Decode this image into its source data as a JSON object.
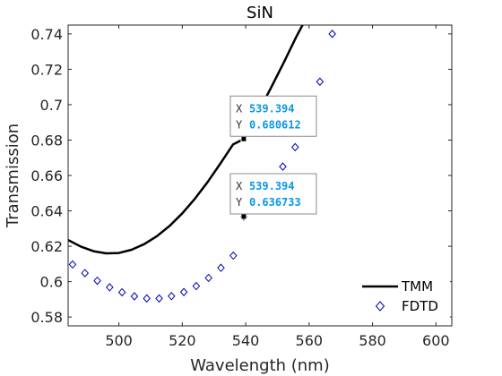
{
  "chart_data": {
    "type": "scatter",
    "title": "SiN",
    "xlabel": "Wavelength (nm)",
    "ylabel": "Transmission",
    "xlim": [
      484,
      605
    ],
    "ylim": [
      0.575,
      0.745
    ],
    "xticks": [
      "500",
      "520",
      "540",
      "560",
      "580",
      "600"
    ],
    "xtick_values": [
      500,
      520,
      540,
      560,
      580,
      600
    ],
    "yticks": [
      "0.58",
      "0.6",
      "0.62",
      "0.64",
      "0.66",
      "0.68",
      "0.7",
      "0.72",
      "0.74"
    ],
    "ytick_values": [
      0.58,
      0.6,
      0.62,
      0.64,
      0.66,
      0.68,
      0.7,
      0.72,
      0.74
    ],
    "grid": false,
    "legend_position": "bottom-right",
    "series": [
      {
        "name": "TMM",
        "style": "line",
        "color": "#000000",
        "x": [
          484,
          488,
          492,
          496,
          500,
          504,
          508,
          512,
          516,
          520,
          524,
          528,
          532,
          536,
          539.394,
          544,
          548,
          552,
          556,
          560
        ],
        "y": [
          0.6235,
          0.6198,
          0.6172,
          0.616,
          0.6162,
          0.618,
          0.6212,
          0.6257,
          0.6315,
          0.6386,
          0.6469,
          0.6563,
          0.6667,
          0.6775,
          0.680612,
          0.696,
          0.7096,
          0.7238,
          0.7385,
          0.752
        ]
      },
      {
        "name": "FDTD",
        "style": "markers",
        "marker": "diamond",
        "color": "#0000b3",
        "x": [
          485.4,
          489.3,
          493.2,
          497.1,
          501,
          504.9,
          508.8,
          512.7,
          516.6,
          520.5,
          524.4,
          528.3,
          532.2,
          536.1,
          539.394,
          543.9,
          547.8,
          551.7,
          555.6,
          559.5,
          563.4,
          567.3
        ],
        "y": [
          0.6097,
          0.6048,
          0.6005,
          0.5968,
          0.594,
          0.5917,
          0.5905,
          0.5905,
          0.5918,
          0.5941,
          0.5975,
          0.6021,
          0.6078,
          0.6147,
          0.636733,
          0.6437,
          0.6528,
          0.665,
          0.676,
          0.6983,
          0.713,
          0.74
        ]
      }
    ],
    "datatips": [
      {
        "series": "TMM",
        "x": 539.394,
        "y": 0.680612,
        "x_label": "X",
        "y_label": "Y",
        "x_text": "539.394",
        "y_text": "0.680612"
      },
      {
        "series": "FDTD",
        "x": 539.394,
        "y": 0.636733,
        "x_label": "X",
        "y_label": "Y",
        "x_text": "539.394",
        "y_text": "0.636733"
      }
    ]
  }
}
